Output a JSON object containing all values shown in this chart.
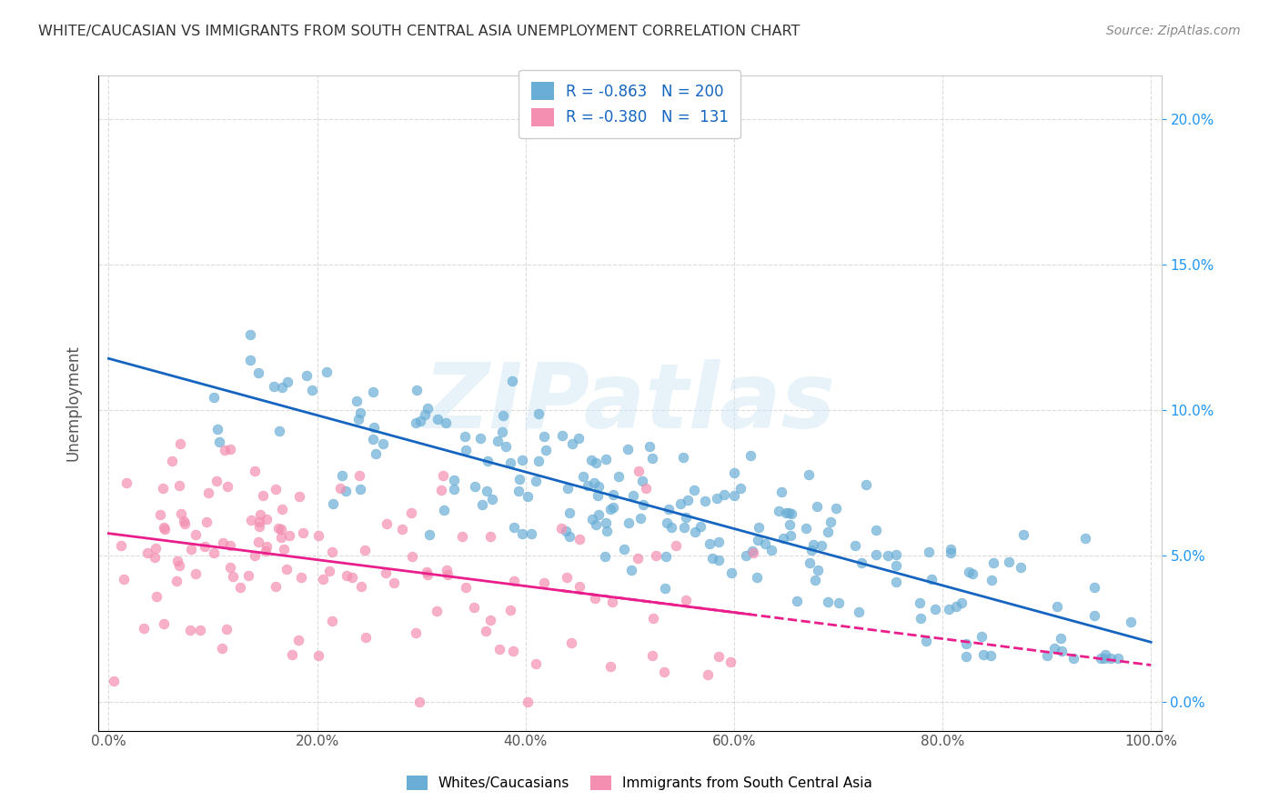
{
  "title": "WHITE/CAUCASIAN VS IMMIGRANTS FROM SOUTH CENTRAL ASIA UNEMPLOYMENT CORRELATION CHART",
  "source": "Source: ZipAtlas.com",
  "xlabel_ticks": [
    "0.0%",
    "20.0%",
    "40.0%",
    "60.0%",
    "80.0%",
    "100.0%"
  ],
  "ylabel_label": "Unemployment",
  "right_yticks": [
    "0.0%",
    "5.0%",
    "10.0%",
    "15.0%",
    "20.0%"
  ],
  "watermark": "ZIPatlas",
  "legend_blue_r": "-0.863",
  "legend_blue_n": "200",
  "legend_pink_r": "-0.380",
  "legend_pink_n": "131",
  "blue_color": "#6aaed6",
  "pink_color": "#f48fb1",
  "blue_line_color": "#1565c0",
  "pink_line_color": "#e91e8c",
  "background_color": "#ffffff",
  "grid_color": "#cccccc",
  "blue_scatter_seed": 42,
  "pink_scatter_seed": 123,
  "blue_R": -0.863,
  "blue_N": 200,
  "pink_R": -0.38,
  "pink_N": 131
}
